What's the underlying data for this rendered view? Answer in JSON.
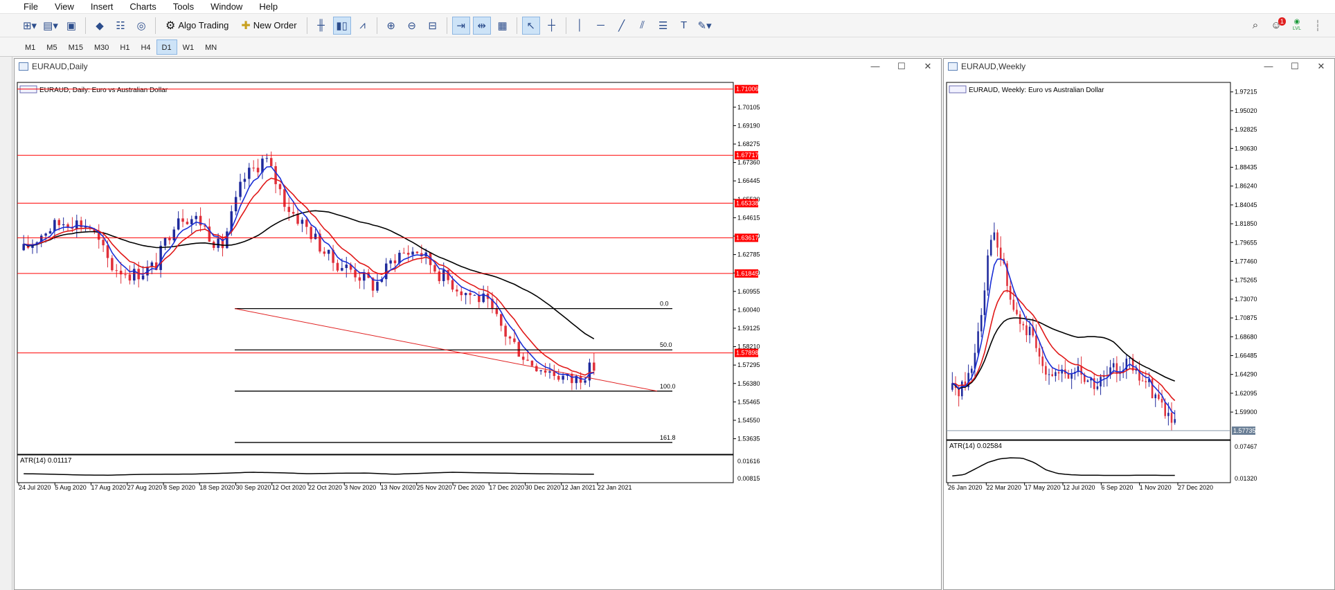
{
  "menu": [
    "File",
    "View",
    "Insert",
    "Charts",
    "Tools",
    "Window",
    "Help"
  ],
  "toolbar": {
    "algo_trading_label": "Algo Trading",
    "new_order_label": "New Order",
    "notification_count": "1",
    "lvl_label": "LVL"
  },
  "timeframes": [
    "M1",
    "M5",
    "M15",
    "M30",
    "H1",
    "H4",
    "D1",
    "W1",
    "MN"
  ],
  "active_timeframe": "D1",
  "daily": {
    "window_title": "EURAUD,Daily",
    "chart_label": "EURAUD, Daily:  Euro vs Australian Dollar",
    "price_labels": [
      "1.70105",
      "1.69190",
      "1.68275",
      "1.67360",
      "1.66445",
      "1.65530",
      "1.64615",
      "1.63700",
      "1.62785",
      "1.61870",
      "1.60955",
      "1.60040",
      "1.59125",
      "1.58210",
      "1.57295",
      "1.56380",
      "1.55465",
      "1.54550",
      "1.53635"
    ],
    "hlines": [
      {
        "price": "1.71006",
        "color": "#ff0000"
      },
      {
        "price": "1.67717",
        "color": "#ff0000"
      },
      {
        "price": "1.65338",
        "color": "#ff0000"
      },
      {
        "price": "1.63617",
        "color": "#ff0000"
      },
      {
        "price": "1.61845",
        "color": "#ff0000"
      },
      {
        "price": "1.57898",
        "color": "#ff0000"
      }
    ],
    "fib_levels": [
      "0.0",
      "50.0",
      "100.0",
      "161.8"
    ],
    "indicator_label": "ATR(14) 0.01117",
    "indicator_scale": [
      "0.01616",
      "0.00815"
    ],
    "date_labels": [
      "24 Jul 2020",
      "5 Aug 2020",
      "17 Aug 2020",
      "27 Aug 2020",
      "8 Sep 2020",
      "18 Sep 2020",
      "30 Sep 2020",
      "12 Oct 2020",
      "22 Oct 2020",
      "3 Nov 2020",
      "13 Nov 2020",
      "25 Nov 2020",
      "7 Dec 2020",
      "17 Dec 2020",
      "30 Dec 2020",
      "12 Jan 2021",
      "22 Jan 2021"
    ]
  },
  "weekly": {
    "window_title": "EURAUD,Weekly",
    "chart_label": "EURAUD, Weekly:  Euro vs Australian Dollar",
    "price_labels": [
      "1.97215",
      "1.95020",
      "1.92825",
      "1.90630",
      "1.88435",
      "1.86240",
      "1.84045",
      "1.81850",
      "1.79655",
      "1.77460",
      "1.75265",
      "1.73070",
      "1.70875",
      "1.68680",
      "1.66485",
      "1.64290",
      "1.62095",
      "1.59900"
    ],
    "current_price": "1.57735",
    "indicator_label": "ATR(14) 0.02584",
    "indicator_scale": [
      "0.07467",
      "0.01320"
    ],
    "date_labels": [
      "26 Jan 2020",
      "22 Mar 2020",
      "17 May 2020",
      "12 Jul 2020",
      "6 Sep 2020",
      "1 Nov 2020",
      "27 Dec 2020"
    ]
  },
  "colors": {
    "bull": "#1f2a9c",
    "bear": "#e0303a",
    "ma_fast": "#1a2fd6",
    "ma_mid": "#e01818",
    "ma_slow": "#000000",
    "level": "#ff0000"
  }
}
